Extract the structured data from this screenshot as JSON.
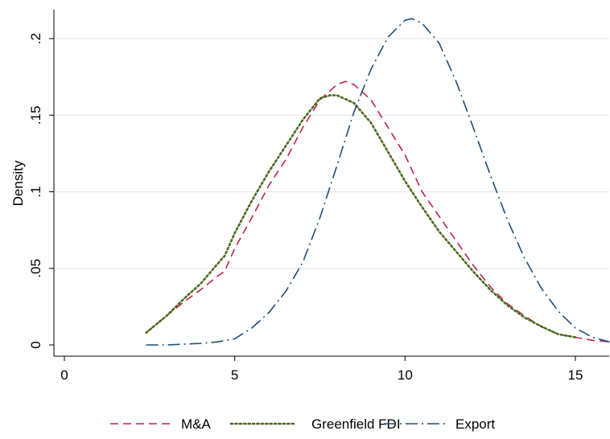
{
  "chart_data": {
    "type": "line",
    "title": "",
    "xlabel": "",
    "ylabel": "Density",
    "xlim": [
      0,
      16
    ],
    "ylim": [
      0,
      0.22
    ],
    "x_ticks": [
      0,
      5,
      10,
      15
    ],
    "x_tick_labels": [
      "0",
      "5",
      "10",
      "15"
    ],
    "y_ticks": [
      0,
      0.05,
      0.1,
      0.15,
      0.2
    ],
    "y_tick_labels": [
      "0",
      ".05",
      ".1",
      ".15",
      ".2"
    ],
    "grid": true,
    "legend_position": "bottom",
    "series": [
      {
        "name": "M&A",
        "color": "#c2224a",
        "dash": "dashed",
        "points": [
          [
            2.4,
            0.008
          ],
          [
            3.0,
            0.019
          ],
          [
            3.5,
            0.028
          ],
          [
            4.0,
            0.036
          ],
          [
            4.5,
            0.045
          ],
          [
            4.7,
            0.048
          ],
          [
            5.0,
            0.063
          ],
          [
            5.5,
            0.083
          ],
          [
            6.0,
            0.104
          ],
          [
            6.5,
            0.121
          ],
          [
            7.0,
            0.142
          ],
          [
            7.5,
            0.16
          ],
          [
            8.0,
            0.17
          ],
          [
            8.25,
            0.172
          ],
          [
            8.5,
            0.17
          ],
          [
            9.0,
            0.16
          ],
          [
            9.5,
            0.142
          ],
          [
            10.0,
            0.124
          ],
          [
            10.5,
            0.1
          ],
          [
            11.0,
            0.084
          ],
          [
            11.5,
            0.068
          ],
          [
            12.0,
            0.052
          ],
          [
            12.5,
            0.038
          ],
          [
            13.0,
            0.027
          ],
          [
            13.5,
            0.019
          ],
          [
            14.0,
            0.012
          ],
          [
            14.5,
            0.007
          ],
          [
            15.0,
            0.005
          ],
          [
            15.5,
            0.003
          ],
          [
            16.0,
            0.002
          ]
        ]
      },
      {
        "name": "Greenfield FDI",
        "color": "#4a6b1f",
        "dash": "dotted",
        "points": [
          [
            2.4,
            0.008
          ],
          [
            3.0,
            0.019
          ],
          [
            3.5,
            0.03
          ],
          [
            4.0,
            0.04
          ],
          [
            4.5,
            0.053
          ],
          [
            4.7,
            0.058
          ],
          [
            5.0,
            0.073
          ],
          [
            5.5,
            0.094
          ],
          [
            6.0,
            0.113
          ],
          [
            6.5,
            0.13
          ],
          [
            7.0,
            0.147
          ],
          [
            7.5,
            0.161
          ],
          [
            7.8,
            0.163
          ],
          [
            8.0,
            0.163
          ],
          [
            8.5,
            0.158
          ],
          [
            9.0,
            0.145
          ],
          [
            9.5,
            0.126
          ],
          [
            10.0,
            0.107
          ],
          [
            10.5,
            0.09
          ],
          [
            11.0,
            0.074
          ],
          [
            11.5,
            0.061
          ],
          [
            12.0,
            0.048
          ],
          [
            12.5,
            0.036
          ],
          [
            13.0,
            0.026
          ],
          [
            13.5,
            0.018
          ],
          [
            14.0,
            0.012
          ],
          [
            14.5,
            0.007
          ],
          [
            15.0,
            0.005
          ]
        ]
      },
      {
        "name": "Export",
        "color": "#1f4e79",
        "dash": "dashdot",
        "points": [
          [
            2.4,
            0.0
          ],
          [
            3.0,
            0.0
          ],
          [
            4.0,
            0.001
          ],
          [
            4.5,
            0.002
          ],
          [
            5.0,
            0.004
          ],
          [
            5.5,
            0.011
          ],
          [
            6.0,
            0.021
          ],
          [
            6.5,
            0.035
          ],
          [
            7.0,
            0.054
          ],
          [
            7.5,
            0.083
          ],
          [
            8.0,
            0.117
          ],
          [
            8.5,
            0.152
          ],
          [
            9.0,
            0.18
          ],
          [
            9.5,
            0.201
          ],
          [
            10.0,
            0.212
          ],
          [
            10.2,
            0.213
          ],
          [
            10.5,
            0.21
          ],
          [
            11.0,
            0.197
          ],
          [
            11.5,
            0.172
          ],
          [
            12.0,
            0.142
          ],
          [
            12.5,
            0.111
          ],
          [
            13.0,
            0.082
          ],
          [
            13.5,
            0.057
          ],
          [
            14.0,
            0.037
          ],
          [
            14.5,
            0.022
          ],
          [
            15.0,
            0.011
          ],
          [
            15.5,
            0.005
          ],
          [
            16.0,
            0.002
          ]
        ]
      }
    ]
  }
}
